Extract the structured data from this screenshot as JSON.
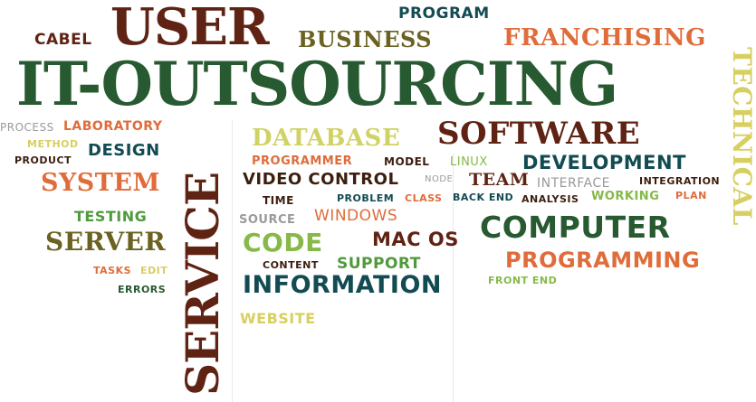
{
  "palette": {
    "dark_green": "#285a32",
    "brown": "#5f2314",
    "dark_teal": "#124b52",
    "orange": "#e06c3a",
    "olive": "#6b6222",
    "yellow_green": "#cfd264",
    "light_green": "#86b948",
    "green": "#4f9a3c",
    "gray": "#9a9a9a",
    "dark_brown": "#3c1e0f",
    "khaki": "#d7cf60"
  },
  "words": {
    "user": "USER",
    "program": "PROGRAM",
    "cabel": "CABEL",
    "business": "BUSINESS",
    "franchising": "FRANCHISING",
    "it_outsourcing": "IT-OUTSOURCING",
    "technical": "TECHNICAL",
    "process": "PROCESS",
    "laboratory": "LABORATORY",
    "method": "METHOD",
    "design": "DESIGN",
    "product": "PRODUCT",
    "system": "SYSTEM",
    "testing": "TESTING",
    "server": "SERVER",
    "tasks": "TASKS",
    "edit": "EDIT",
    "errors": "ERRORS",
    "service": "SERVICE",
    "database": "DATABASE",
    "software": "SOFTWARE",
    "programmer": "PROGRAMMER",
    "model": "MODEL",
    "linux": "LINUX",
    "development": "DEVELOPMENT",
    "video_control": "VIDEO CONTROL",
    "node": "NODE",
    "team": "TEAM",
    "interface": "INTERFACE",
    "integration": "INTEGRATION",
    "time": "TIME",
    "problem": "PROBLEM",
    "class": "CLASS",
    "back_end": "BACK END",
    "analysis": "ANALYSIS",
    "working": "WORKING",
    "plan": "PLAN",
    "source": "SOURCE",
    "windows": "WINDOWS",
    "computer": "COMPUTER",
    "code": "CODE",
    "mac_os": "MAC OS",
    "programming": "PROGRAMMING",
    "content": "CONTENT",
    "support": "SUPPORT",
    "front_end": "FRONT END",
    "information": "INFORMATION",
    "website": "WEBSITE"
  }
}
